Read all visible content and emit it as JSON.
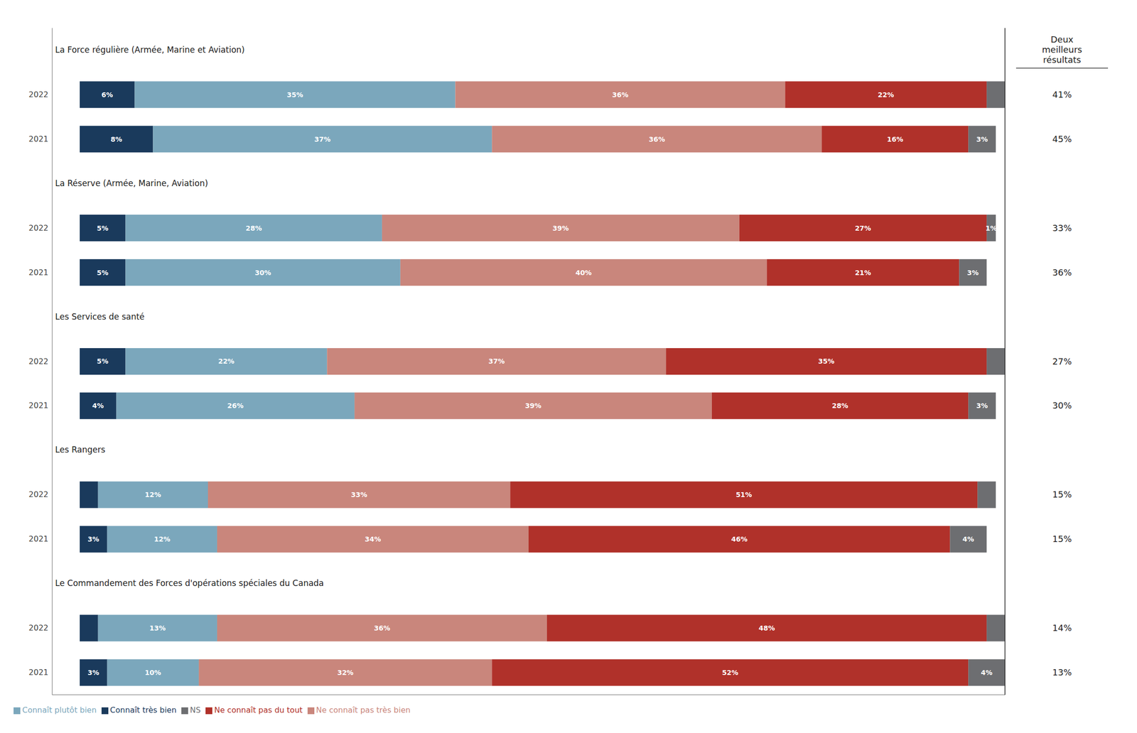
{
  "chart_data": {
    "type": "bar",
    "orientation": "horizontal",
    "stacked": true,
    "data_labels": true,
    "grid": false,
    "legend": "lower left",
    "tick_labels": "y",
    "xlim": [
      -3,
      101
    ],
    "groups": [
      {
        "title": "La Force régulière (Armée, Marine et Aviation)",
        "categories": [
          "2022",
          "2021"
        ],
        "best_results": [
          41,
          45
        ],
        "best_results_labels": [
          "41%",
          "45%"
        ]
      },
      {
        "title": "La Réserve (Armée, Marine, Aviation)",
        "categories": [
          "2022",
          "2021"
        ],
        "best_results": [
          33,
          36
        ],
        "best_results_labels": [
          "33%",
          "36%"
        ]
      },
      {
        "title": "Les Services de santé",
        "categories": [
          "2022",
          "2021"
        ],
        "best_results": [
          27,
          30
        ],
        "best_results_labels": [
          "27%",
          "30%"
        ]
      },
      {
        "title": "Les Rangers",
        "categories": [
          "2022",
          "2021"
        ],
        "best_results": [
          15,
          15
        ],
        "best_results_labels": [
          "15%",
          "15%"
        ]
      },
      {
        "title": "Le Commandement des Forces d'opérations spéciales du Canada",
        "categories": [
          "2022",
          "2021"
        ],
        "best_results": [
          14,
          13
        ],
        "best_results_labels": [
          "14%",
          "13%"
        ]
      }
    ],
    "best_results_title": "Deux\nmeilleurs\nrésultats",
    "series": [
      {
        "name": "Connaît très bien",
        "color": "#1a3a5c",
        "values": [
          6,
          8,
          5,
          5,
          5,
          4,
          2,
          3,
          2,
          3
        ],
        "value_labels": [
          "6%",
          "8%",
          "5%",
          "5%",
          "5%",
          "4%",
          null,
          "3%",
          null,
          "3%"
        ]
      },
      {
        "name": "Connaît plutôt bien",
        "color": "#7ba7bc",
        "values": [
          35,
          37,
          28,
          30,
          22,
          26,
          12,
          12,
          13,
          10
        ],
        "value_labels": [
          "35%",
          "37%",
          "28%",
          "30%",
          "22%",
          "26%",
          "12%",
          "12%",
          "13%",
          "10%"
        ]
      },
      {
        "name": "Ne connaît pas très bien",
        "color": "#c9867c",
        "values": [
          36,
          36,
          39,
          40,
          37,
          39,
          33,
          34,
          36,
          32
        ],
        "value_labels": [
          "36%",
          "36%",
          "39%",
          "40%",
          "37%",
          "39%",
          "33%",
          "34%",
          "36%",
          "32%"
        ]
      },
      {
        "name": "Ne connaît pas du tout",
        "color": "#b0312a",
        "values": [
          22,
          16,
          27,
          21,
          35,
          28,
          51,
          46,
          48,
          52
        ],
        "value_labels": [
          "22%",
          "16%",
          "27%",
          "21%",
          "35%",
          "28%",
          "51%",
          "46%",
          "48%",
          "52%"
        ]
      },
      {
        "name": "NS",
        "color": "#6d6e71",
        "values": [
          2,
          3,
          1,
          3,
          2,
          3,
          2,
          4,
          2,
          4
        ],
        "value_labels": [
          null,
          "3%",
          "1%",
          "3%",
          null,
          "3%",
          null,
          "4%",
          null,
          "4%"
        ]
      }
    ]
  }
}
